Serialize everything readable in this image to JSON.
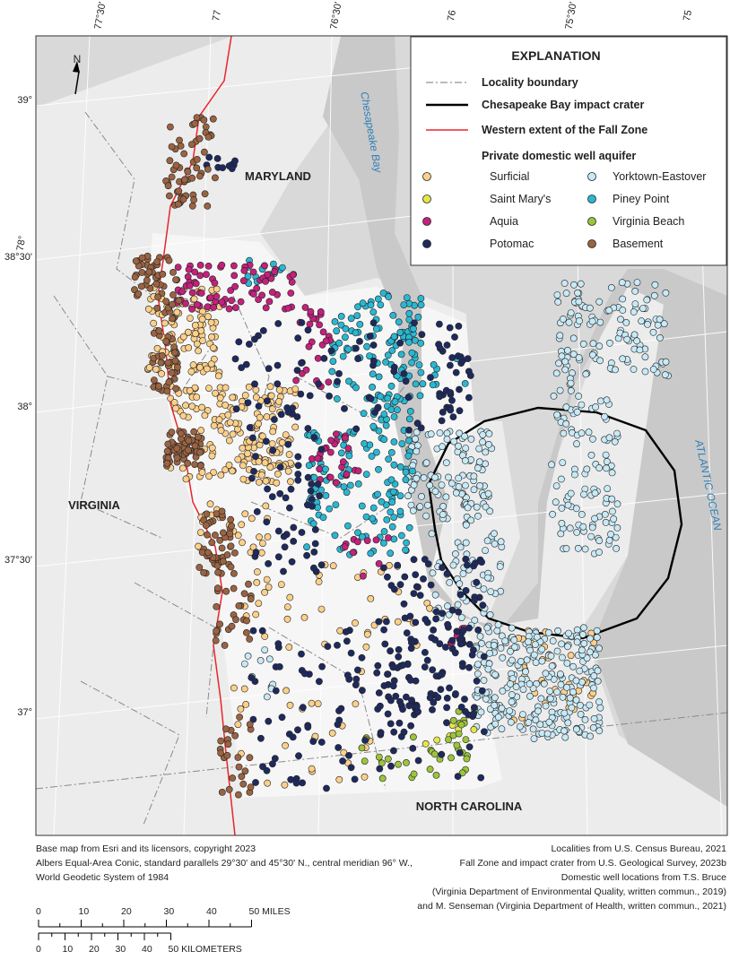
{
  "graticule": {
    "top": [
      "77°30'",
      "77",
      "76°30'",
      "76",
      "75°30'",
      "75"
    ],
    "left_longitude": "78°",
    "latitudes": [
      "39°",
      "38°30'",
      "38°",
      "37°30'",
      "37°"
    ]
  },
  "map_labels": {
    "maryland": "MARYLAND",
    "virginia": "VIRGINIA",
    "north_carolina": "NORTH CAROLINA",
    "bay": "Chesapeake Bay",
    "ocean": "ATLANTIC OCEAN"
  },
  "north_arrow": "N",
  "legend": {
    "title": "EXPLANATION",
    "lines": [
      {
        "label": "Locality boundary",
        "color": "#777777"
      },
      {
        "label": "Chesapeake Bay impact crater",
        "color": "#000000"
      },
      {
        "label": "Western extent of the Fall Zone",
        "color": "#e8262b"
      }
    ],
    "aquifer_heading": "Private domestic well aquifer",
    "aquifers": [
      {
        "label": "Surficial",
        "color": "#fdd08a"
      },
      {
        "label": "Yorktown-Eastover",
        "color": "#c8e9f6"
      },
      {
        "label": "Saint Mary's",
        "color": "#e6e64a"
      },
      {
        "label": "Piney Point",
        "color": "#2ab7d2"
      },
      {
        "label": "Aquia",
        "color": "#c4217c"
      },
      {
        "label": "Virginia Beach",
        "color": "#9cc43c"
      },
      {
        "label": "Potomac",
        "color": "#1e2a5e"
      },
      {
        "label": "Basement",
        "color": "#9a6342"
      }
    ]
  },
  "credits": {
    "left": [
      "Base map from Esri and its licensors, copyright 2023",
      "Albers Equal-Area Conic, standard parallels 29°30' and 45°30' N., central meridian 96° W.,",
      "World Geodetic System of 1984"
    ],
    "right": [
      "Localities from U.S. Census Bureau, 2021",
      "Fall Zone and impact crater from U.S. Geological Survey, 2023b",
      "Domestic well locations from T.S. Bruce",
      "(Virginia Department of Environmental Quality, written commun., 2019)",
      "and M. Senseman (Virginia Department of Health, written commun., 2021)"
    ]
  },
  "scale": {
    "miles": [
      "0",
      "10",
      "20",
      "30",
      "40",
      "50 MILES"
    ],
    "kilometers": [
      "0",
      "10",
      "20",
      "30",
      "40",
      "50 KILOMETERS"
    ]
  }
}
